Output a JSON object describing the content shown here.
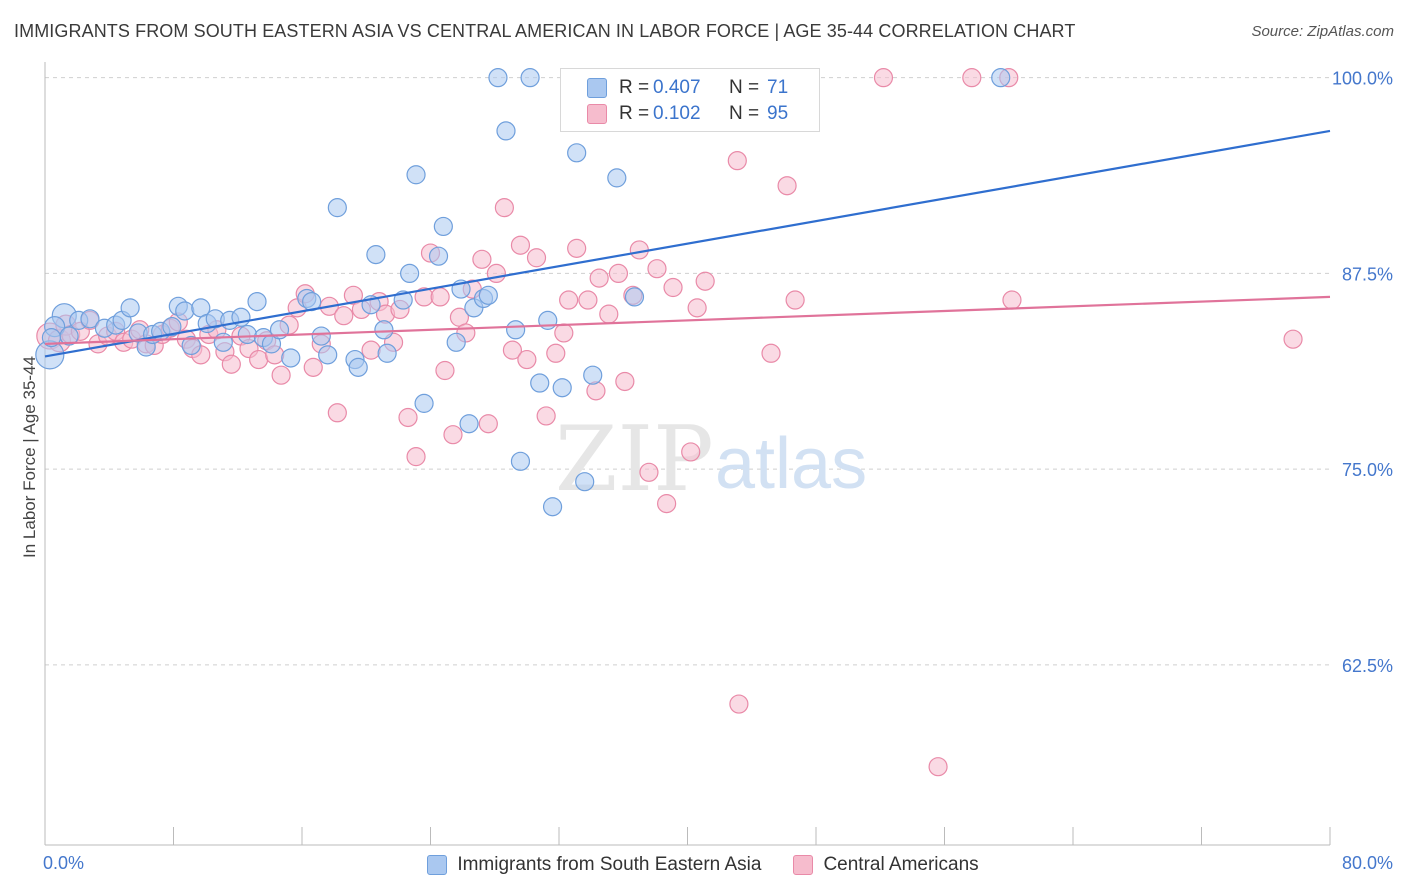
{
  "title": "IMMIGRANTS FROM SOUTH EASTERN ASIA VS CENTRAL AMERICAN IN LABOR FORCE | AGE 35-44 CORRELATION CHART",
  "source": "Source: ZipAtlas.com",
  "watermark": {
    "zip": "ZIP",
    "atlas": "atlas"
  },
  "legend": {
    "r_label": "R =",
    "n_label": "N =",
    "rows": [
      {
        "r": "0.407",
        "n": "71"
      },
      {
        "r": "0.102",
        "n": "95"
      }
    ]
  },
  "colors": {
    "blue_fill": "#aac8f0",
    "blue_stroke": "#6f9fdc",
    "blue_line": "#2f6ecf",
    "pink_fill": "#f6bccd",
    "pink_stroke": "#e98aa8",
    "pink_line": "#e0739a",
    "tick_label": "#4477cc",
    "grid": "#cfcfcf"
  },
  "chart_data": {
    "type": "scatter",
    "title": "IMMIGRANTS FROM SOUTH EASTERN ASIA VS CENTRAL AMERICAN IN LABOR FORCE | AGE 35-44 CORRELATION CHART",
    "xlabel": "",
    "ylabel": "In Labor Force | Age 35-44",
    "xlim": [
      0,
      80
    ],
    "ylim": [
      51,
      101
    ],
    "x_tick_labels": [
      "0.0%",
      "80.0%"
    ],
    "y_ticks": [
      62.5,
      75.0,
      87.5,
      100.0
    ],
    "y_tick_labels": [
      "62.5%",
      "75.0%",
      "87.5%",
      "100.0%"
    ],
    "grid": true,
    "legend_position": "bottom",
    "series": [
      {
        "name": "Immigrants from South Eastern Asia",
        "r": 0.407,
        "n": 71,
        "trend": {
          "x": [
            0,
            80
          ],
          "y": [
            82.2,
            96.6
          ]
        },
        "points": [
          [
            0.3,
            82.3,
            14
          ],
          [
            1.2,
            84.8,
            12
          ],
          [
            0.6,
            84.1,
            10
          ],
          [
            1.5,
            83.5,
            9
          ],
          [
            2.1,
            84.5,
            9
          ],
          [
            2.8,
            84.6,
            9
          ],
          [
            3.7,
            84.0,
            9
          ],
          [
            4.4,
            84.2,
            9
          ],
          [
            4.8,
            84.5,
            9
          ],
          [
            5.3,
            85.3,
            9
          ],
          [
            5.8,
            83.7,
            9
          ],
          [
            6.3,
            82.8,
            9
          ],
          [
            6.7,
            83.6,
            9
          ],
          [
            7.2,
            83.8,
            9
          ],
          [
            7.9,
            84.1,
            9
          ],
          [
            8.3,
            85.4,
            9
          ],
          [
            8.7,
            85.1,
            9
          ],
          [
            9.1,
            82.9,
            9
          ],
          [
            9.7,
            85.3,
            9
          ],
          [
            10.1,
            84.3,
            9
          ],
          [
            10.6,
            84.6,
            9
          ],
          [
            11.1,
            83.1,
            9
          ],
          [
            11.5,
            84.5,
            9
          ],
          [
            12.2,
            84.7,
            9
          ],
          [
            12.6,
            83.6,
            9
          ],
          [
            13.2,
            85.7,
            9
          ],
          [
            13.6,
            83.4,
            9
          ],
          [
            14.1,
            83.0,
            9
          ],
          [
            14.6,
            83.9,
            9
          ],
          [
            15.3,
            82.1,
            9
          ],
          [
            16.3,
            85.9,
            9
          ],
          [
            16.6,
            85.7,
            9
          ],
          [
            17.2,
            83.5,
            9
          ],
          [
            17.6,
            82.3,
            9
          ],
          [
            18.2,
            91.7,
            9
          ],
          [
            19.3,
            82.0,
            9
          ],
          [
            19.5,
            81.5,
            9
          ],
          [
            20.3,
            85.5,
            9
          ],
          [
            20.6,
            88.7,
            9
          ],
          [
            21.1,
            83.9,
            9
          ],
          [
            21.3,
            82.4,
            9
          ],
          [
            22.3,
            85.8,
            9
          ],
          [
            22.7,
            87.5,
            9
          ],
          [
            23.1,
            93.8,
            9
          ],
          [
            23.6,
            79.2,
            9
          ],
          [
            24.5,
            88.6,
            9
          ],
          [
            24.8,
            90.5,
            9
          ],
          [
            25.6,
            83.1,
            9
          ],
          [
            25.9,
            86.5,
            9
          ],
          [
            26.4,
            77.9,
            9
          ],
          [
            26.7,
            85.3,
            9
          ],
          [
            27.3,
            85.9,
            9
          ],
          [
            27.6,
            86.1,
            9
          ],
          [
            28.2,
            100.0,
            9
          ],
          [
            28.7,
            96.6,
            9
          ],
          [
            29.3,
            83.9,
            9
          ],
          [
            29.6,
            75.5,
            9
          ],
          [
            30.2,
            100.0,
            9
          ],
          [
            30.8,
            80.5,
            9
          ],
          [
            31.3,
            84.5,
            9
          ],
          [
            31.6,
            72.6,
            9
          ],
          [
            32.2,
            80.2,
            9
          ],
          [
            33.1,
            95.2,
            9
          ],
          [
            33.6,
            74.2,
            9
          ],
          [
            34.1,
            81.0,
            9
          ],
          [
            35.6,
            93.6,
            9
          ],
          [
            36.7,
            86.0,
            9
          ],
          [
            43.0,
            100.0,
            9
          ],
          [
            47.2,
            100.0,
            9
          ],
          [
            59.5,
            100.0,
            9
          ],
          [
            0.4,
            83.4,
            9
          ]
        ]
      },
      {
        "name": "Central Americans",
        "r": 0.102,
        "n": 95,
        "trend": {
          "x": [
            0,
            80
          ],
          "y": [
            83.0,
            86.0
          ]
        },
        "points": [
          [
            0.3,
            83.5,
            13
          ],
          [
            0.9,
            83.2,
            11
          ],
          [
            1.3,
            84.2,
            10
          ],
          [
            1.6,
            83.6,
            9
          ],
          [
            2.2,
            83.8,
            9
          ],
          [
            2.8,
            84.5,
            9
          ],
          [
            3.3,
            83.0,
            9
          ],
          [
            3.9,
            83.5,
            9
          ],
          [
            4.4,
            83.8,
            9
          ],
          [
            4.9,
            83.1,
            9
          ],
          [
            5.4,
            83.3,
            9
          ],
          [
            5.9,
            83.9,
            9
          ],
          [
            6.3,
            83.0,
            9
          ],
          [
            6.8,
            82.9,
            9
          ],
          [
            7.3,
            83.6,
            9
          ],
          [
            7.8,
            84.0,
            9
          ],
          [
            8.3,
            84.4,
            9
          ],
          [
            8.8,
            83.3,
            9
          ],
          [
            9.2,
            82.7,
            9
          ],
          [
            9.7,
            82.3,
            9
          ],
          [
            10.2,
            83.6,
            9
          ],
          [
            10.7,
            83.9,
            9
          ],
          [
            11.2,
            82.5,
            9
          ],
          [
            11.6,
            81.7,
            9
          ],
          [
            12.2,
            83.5,
            9
          ],
          [
            12.7,
            82.7,
            9
          ],
          [
            13.3,
            82.0,
            9
          ],
          [
            13.8,
            83.2,
            9
          ],
          [
            14.3,
            82.3,
            9
          ],
          [
            14.7,
            81.0,
            9
          ],
          [
            15.2,
            84.2,
            9
          ],
          [
            15.7,
            85.3,
            9
          ],
          [
            16.2,
            86.2,
            9
          ],
          [
            16.7,
            81.5,
            9
          ],
          [
            17.2,
            83.0,
            9
          ],
          [
            17.7,
            85.4,
            9
          ],
          [
            18.2,
            78.6,
            9
          ],
          [
            18.6,
            84.8,
            9
          ],
          [
            19.2,
            86.1,
            9
          ],
          [
            19.7,
            85.2,
            9
          ],
          [
            20.3,
            82.6,
            9
          ],
          [
            20.8,
            85.7,
            9
          ],
          [
            21.2,
            84.9,
            9
          ],
          [
            21.7,
            83.1,
            9
          ],
          [
            22.1,
            85.2,
            9
          ],
          [
            22.6,
            78.3,
            9
          ],
          [
            23.1,
            75.8,
            9
          ],
          [
            23.6,
            86.0,
            9
          ],
          [
            24.0,
            88.8,
            9
          ],
          [
            24.6,
            86.0,
            9
          ],
          [
            24.9,
            81.3,
            9
          ],
          [
            25.4,
            77.2,
            9
          ],
          [
            25.8,
            84.7,
            9
          ],
          [
            26.2,
            83.7,
            9
          ],
          [
            26.6,
            86.5,
            9
          ],
          [
            27.2,
            88.4,
            9
          ],
          [
            27.6,
            77.9,
            9
          ],
          [
            28.1,
            87.5,
            9
          ],
          [
            28.6,
            91.7,
            9
          ],
          [
            29.1,
            82.6,
            9
          ],
          [
            29.6,
            89.3,
            9
          ],
          [
            30.0,
            82.0,
            9
          ],
          [
            30.6,
            88.5,
            9
          ],
          [
            31.2,
            78.4,
            9
          ],
          [
            31.8,
            82.4,
            9
          ],
          [
            32.3,
            83.7,
            9
          ],
          [
            32.6,
            85.8,
            9
          ],
          [
            33.1,
            89.1,
            9
          ],
          [
            33.8,
            85.8,
            9
          ],
          [
            34.3,
            80.0,
            9
          ],
          [
            34.5,
            87.2,
            9
          ],
          [
            35.1,
            84.9,
            9
          ],
          [
            35.7,
            87.5,
            9
          ],
          [
            36.1,
            80.6,
            9
          ],
          [
            36.6,
            86.1,
            9
          ],
          [
            37.0,
            89.0,
            9
          ],
          [
            37.6,
            74.8,
            9
          ],
          [
            38.1,
            87.8,
            9
          ],
          [
            38.7,
            72.8,
            9
          ],
          [
            39.1,
            86.6,
            9
          ],
          [
            40.2,
            76.1,
            9
          ],
          [
            40.6,
            85.3,
            9
          ],
          [
            41.1,
            87.0,
            9
          ],
          [
            43.1,
            94.7,
            9
          ],
          [
            43.2,
            60.0,
            9
          ],
          [
            45.2,
            82.4,
            9
          ],
          [
            46.2,
            93.1,
            9
          ],
          [
            46.7,
            85.8,
            9
          ],
          [
            52.2,
            100.0,
            9
          ],
          [
            55.6,
            56.0,
            9
          ],
          [
            57.7,
            100.0,
            9
          ],
          [
            60.0,
            100.0,
            9
          ],
          [
            60.2,
            85.8,
            9
          ],
          [
            77.7,
            83.3,
            9
          ],
          [
            34.5,
            100.0,
            9
          ]
        ]
      }
    ]
  },
  "bottom_legend": [
    "Immigrants from South Eastern Asia",
    "Central Americans"
  ]
}
